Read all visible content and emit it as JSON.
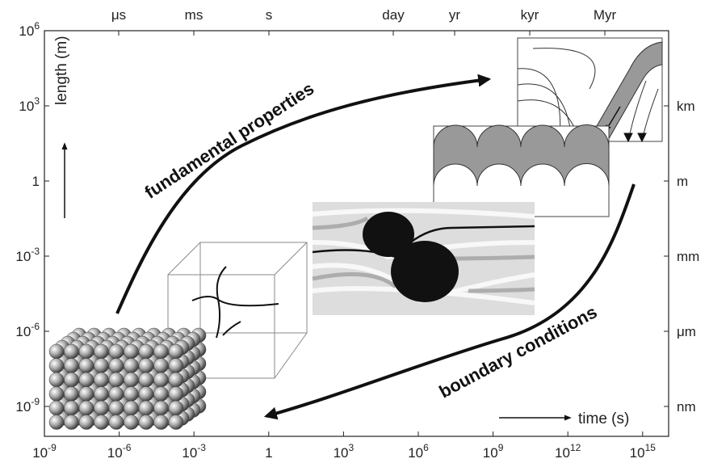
{
  "bottom_axis": {
    "title": "time (s)",
    "ticks": [
      {
        "base": "10",
        "exp": "-9"
      },
      {
        "base": "10",
        "exp": "-6"
      },
      {
        "base": "10",
        "exp": "-3"
      },
      {
        "base": "1"
      },
      {
        "base": "10",
        "exp": "3"
      },
      {
        "base": "10",
        "exp": "6"
      },
      {
        "base": "10",
        "exp": "9"
      },
      {
        "base": "10",
        "exp": "12"
      },
      {
        "base": "10",
        "exp": "15"
      }
    ]
  },
  "left_axis": {
    "title": "length (m)",
    "ticks": [
      {
        "base": "10",
        "exp": "6"
      },
      {
        "base": "10",
        "exp": "3"
      },
      {
        "base": "1"
      },
      {
        "base": "10",
        "exp": "-3"
      },
      {
        "base": "10",
        "exp": "-6"
      },
      {
        "base": "10",
        "exp": "-9"
      }
    ]
  },
  "top_axis": {
    "ticks": [
      "μs",
      "ms",
      "s",
      "day",
      "yr",
      "kyr",
      "Myr"
    ]
  },
  "right_axis": {
    "ticks": [
      "km",
      "m",
      "mm",
      "μm",
      "nm"
    ]
  },
  "arrows": {
    "upper": "fundamental properties",
    "lower": "boundary conditions"
  }
}
